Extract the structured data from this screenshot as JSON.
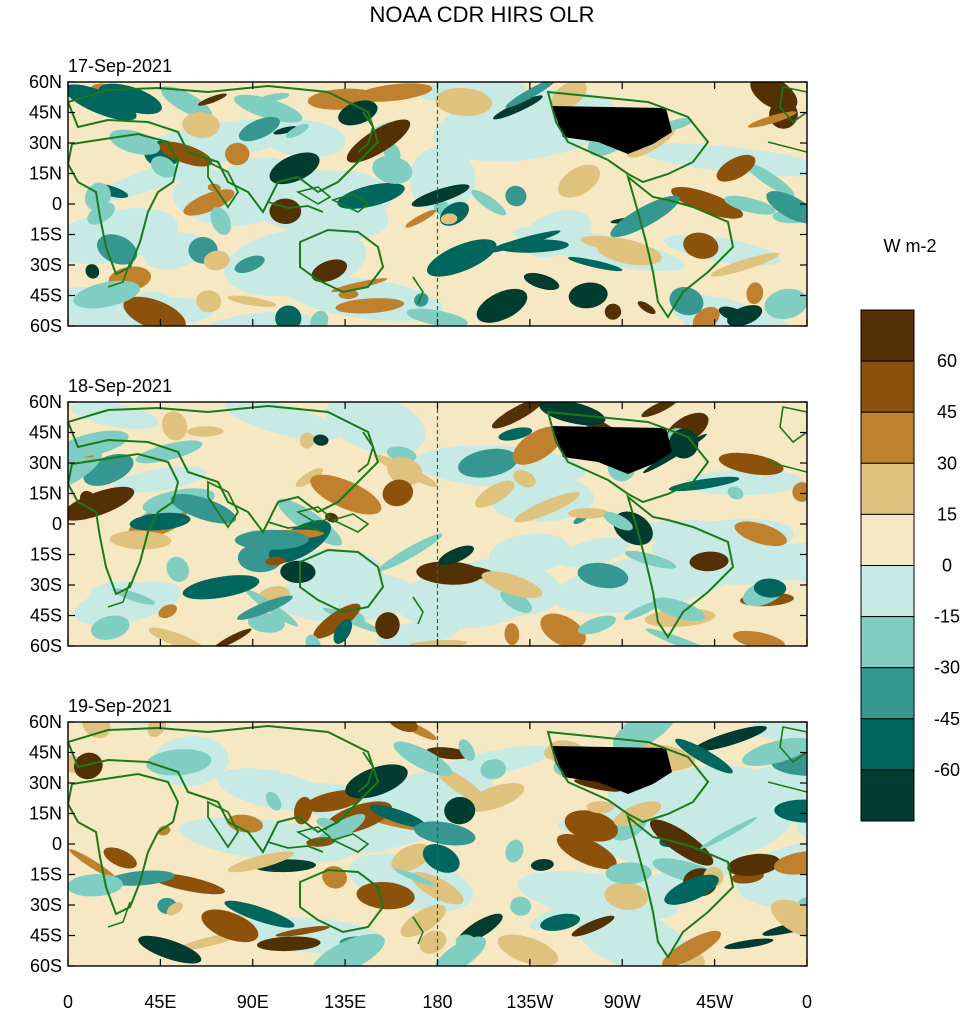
{
  "title": "NOAA CDR HIRS OLR",
  "panels": [
    {
      "date": "17-Sep-2021"
    },
    {
      "date": "18-Sep-2021"
    },
    {
      "date": "19-Sep-2021"
    }
  ],
  "lat_labels": [
    "60N",
    "45N",
    "30N",
    "15N",
    "0",
    "15S",
    "30S",
    "45S",
    "60S"
  ],
  "lon_labels": [
    "0",
    "45E",
    "90E",
    "135E",
    "180",
    "135W",
    "90W",
    "45W",
    "0"
  ],
  "colorbar": {
    "unit": "W m-2",
    "labels": [
      "60",
      "45",
      "30",
      "15",
      "0",
      "-15",
      "-30",
      "-45",
      "-60"
    ],
    "colors": [
      "#543005",
      "#8c510a",
      "#bf812d",
      "#dfc27d",
      "#f6e8c3",
      "#c7eae5",
      "#80cdc1",
      "#35978f",
      "#01665e",
      "#003c30"
    ]
  },
  "map_colors": {
    "coast": "#1a7a1a",
    "dateline": "#1a7a1a"
  }
}
